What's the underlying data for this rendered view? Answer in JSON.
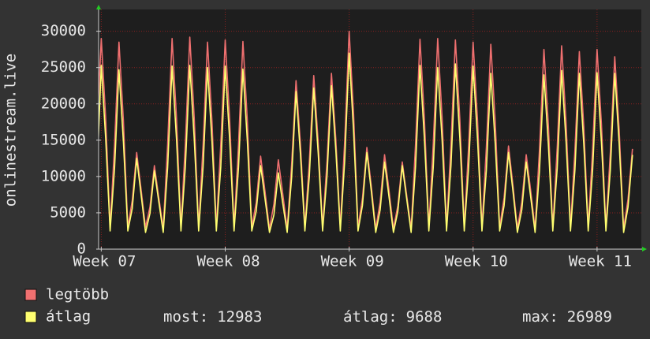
{
  "chart_data": {
    "type": "line",
    "y_label": "onlinestream.live",
    "xlim": [
      -0.15,
      30.5
    ],
    "xticks": [
      {
        "value": 0,
        "label": "Week 07"
      },
      {
        "value": 7,
        "label": "Week 08"
      },
      {
        "value": 14,
        "label": "Week 09"
      },
      {
        "value": 21,
        "label": "Week 10"
      },
      {
        "value": 28,
        "label": "Week 11"
      }
    ],
    "ylim": [
      0,
      33000
    ],
    "yticks": [
      0,
      5000,
      10000,
      15000,
      20000,
      25000,
      30000
    ],
    "grid": true,
    "x": [
      -0.25,
      0,
      0.25,
      0.5,
      0.75,
      1,
      1.25,
      1.5,
      1.75,
      2,
      2.25,
      2.5,
      2.75,
      3,
      3.25,
      3.5,
      3.75,
      4,
      4.25,
      4.5,
      4.75,
      5,
      5.25,
      5.5,
      5.75,
      6,
      6.25,
      6.5,
      6.75,
      7,
      7.25,
      7.5,
      7.75,
      8,
      8.25,
      8.5,
      8.75,
      9,
      9.25,
      9.5,
      9.75,
      10,
      10.25,
      10.5,
      10.75,
      11,
      11.25,
      11.5,
      11.75,
      12,
      12.25,
      12.5,
      12.75,
      13,
      13.25,
      13.5,
      13.75,
      14,
      14.25,
      14.5,
      14.75,
      15,
      15.25,
      15.5,
      15.75,
      16,
      16.25,
      16.5,
      16.75,
      17,
      17.25,
      17.5,
      17.75,
      18,
      18.25,
      18.5,
      18.75,
      19,
      19.25,
      19.5,
      19.75,
      20,
      20.25,
      20.5,
      20.75,
      21,
      21.25,
      21.5,
      21.75,
      22,
      22.25,
      22.5,
      22.75,
      23,
      23.25,
      23.5,
      23.75,
      24,
      24.25,
      24.5,
      24.75,
      25,
      25.25,
      25.5,
      25.75,
      26,
      26.25,
      26.5,
      26.75,
      27,
      27.25,
      27.5,
      27.75,
      28,
      28.25,
      28.5,
      28.75,
      29,
      29.25,
      29.5,
      29.75,
      30
    ],
    "series": [
      {
        "name": "legtöbb",
        "color": "#f07070",
        "values": [
          16000,
          29000,
          18000,
          3000,
          14300,
          28500,
          17700,
          3000,
          6700,
          13300,
          8200,
          3000,
          5800,
          11500,
          7100,
          2800,
          14500,
          29000,
          18000,
          3000,
          14600,
          29200,
          18100,
          3000,
          14300,
          28500,
          17700,
          3000,
          14400,
          28800,
          17900,
          3000,
          14300,
          28600,
          17700,
          3000,
          6400,
          12800,
          7900,
          2800,
          6200,
          12300,
          7600,
          2800,
          11600,
          23200,
          14400,
          3000,
          12000,
          23900,
          14800,
          3000,
          12100,
          24200,
          15000,
          3000,
          15000,
          30000,
          18600,
          3000,
          7000,
          14000,
          8700,
          2800,
          6500,
          13000,
          8100,
          2800,
          6000,
          12000,
          7400,
          2800,
          14500,
          28900,
          17900,
          3000,
          14500,
          29000,
          18000,
          3000,
          14400,
          28800,
          17900,
          3000,
          14300,
          28500,
          17700,
          3000,
          14100,
          28200,
          17500,
          3000,
          7100,
          14200,
          8800,
          2800,
          6500,
          13000,
          8100,
          2800,
          13800,
          27500,
          17100,
          3000,
          14000,
          28000,
          17400,
          3000,
          13600,
          27200,
          16900,
          3000,
          13800,
          27500,
          17100,
          3000,
          13300,
          26500,
          16400,
          2800,
          6900,
          13800
        ]
      },
      {
        "name": "átlag",
        "color": "#ffff70",
        "values": [
          10000,
          25300,
          15200,
          2500,
          11100,
          24700,
          14800,
          2500,
          5600,
          12500,
          7500,
          2300,
          4900,
          10800,
          6500,
          2300,
          11300,
          25200,
          15100,
          2500,
          11400,
          25300,
          15200,
          2500,
          11300,
          25000,
          15000,
          2500,
          11300,
          25200,
          15100,
          2500,
          11200,
          24800,
          14900,
          2500,
          5200,
          11500,
          6900,
          2300,
          4700,
          10500,
          6300,
          2300,
          9800,
          21700,
          13000,
          2500,
          10000,
          22200,
          13300,
          2500,
          10100,
          22500,
          13500,
          2500,
          12200,
          26989,
          16200,
          2500,
          6000,
          13300,
          8000,
          2300,
          5400,
          12000,
          7200,
          2300,
          5200,
          11500,
          6900,
          2300,
          11400,
          25300,
          15200,
          2500,
          11300,
          25000,
          15000,
          2500,
          11500,
          25500,
          15300,
          2500,
          11300,
          25200,
          15100,
          2500,
          10900,
          24200,
          14500,
          2500,
          6000,
          13300,
          8000,
          2300,
          5400,
          12000,
          7200,
          2300,
          10800,
          24000,
          14400,
          2500,
          11100,
          24600,
          14800,
          2500,
          10900,
          24200,
          14500,
          2500,
          10900,
          24300,
          14600,
          2500,
          10900,
          24200,
          14500,
          2300,
          5800,
          12983
        ]
      }
    ],
    "stats": [
      {
        "label": "most:",
        "value": 12983
      },
      {
        "label": "átlag:",
        "value": 9688
      },
      {
        "label": "max:",
        "value": 26989
      }
    ]
  }
}
